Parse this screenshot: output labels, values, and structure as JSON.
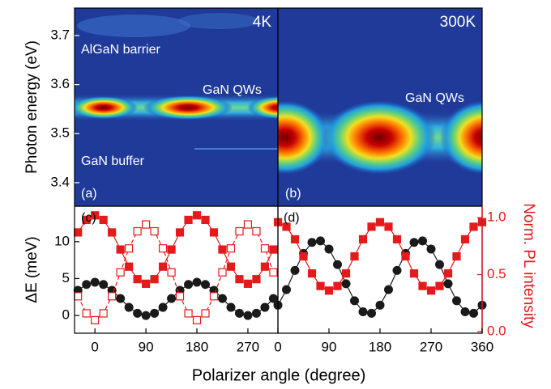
{
  "chart_data": [
    {
      "type": "heatmap",
      "label": "(a)",
      "ylabel": "Photon energy (eV)",
      "ylim": [
        3.352,
        3.756
      ],
      "yticks": [
        3.4,
        3.5,
        3.6,
        3.7
      ],
      "annotations": [
        "4K",
        "AlGaN barrier",
        "GaN QWs",
        "GaN buffer"
      ]
    },
    {
      "type": "heatmap",
      "label": "(b)",
      "ylim": [
        3.352,
        3.756
      ],
      "annotations": [
        "300K",
        "GaN QWs"
      ]
    },
    {
      "type": "scatter-line",
      "label": "(c)",
      "ylabel": "ΔE (meV)",
      "xlabel": "Polarizer angle (degree)",
      "xlim": [
        -36,
        323
      ],
      "xticks": [
        0,
        90,
        180,
        270
      ],
      "ylim": [
        -2.4,
        14.8
      ],
      "yticks": [
        0,
        5,
        10
      ],
      "y2lim": [
        -0.014,
        1.1
      ],
      "x": [
        -30,
        -15,
        0,
        15,
        30,
        45,
        60,
        75,
        90,
        105,
        120,
        135,
        150,
        165,
        180,
        195,
        210,
        225,
        240,
        255,
        270,
        285,
        300,
        315
      ],
      "series": [
        {
          "color": "#1a1a1a",
          "marker": "circle",
          "linestyle": "solid",
          "values": [
            3.4,
            4.2,
            4.5,
            4.2,
            3.4,
            2.3,
            1.1,
            0.3,
            0,
            0.3,
            1.1,
            2.3,
            3.4,
            4.2,
            4.5,
            4.2,
            3.4,
            2.3,
            1.1,
            0.3,
            0,
            0.3,
            1.1,
            2.3
          ]
        },
        {
          "color": "#e41a1c",
          "marker": "square",
          "linestyle": "solid",
          "axis": "y2",
          "values": [
            0.87,
            0.98,
            1.02,
            0.98,
            0.87,
            0.72,
            0.57,
            0.46,
            0.42,
            0.46,
            0.57,
            0.72,
            0.87,
            0.98,
            1.02,
            0.98,
            0.87,
            0.72,
            0.57,
            0.46,
            0.42,
            0.46,
            0.57,
            0.72
          ]
        },
        {
          "color": "#e41a1c",
          "marker": "open-square",
          "linestyle": "dashed",
          "axis": "y2",
          "values": [
            0.31,
            0.16,
            0.1,
            0.16,
            0.31,
            0.52,
            0.73,
            0.88,
            0.94,
            0.88,
            0.73,
            0.52,
            0.31,
            0.16,
            0.1,
            0.16,
            0.31,
            0.52,
            0.73,
            0.88,
            0.94,
            0.88,
            0.73,
            0.52
          ]
        }
      ]
    },
    {
      "type": "scatter-line",
      "label": "(d)",
      "y2label": "Norm. PL intensity",
      "xlim": [
        0,
        360
      ],
      "xticks": [
        0,
        90,
        180,
        270,
        360
      ],
      "ylim": [
        -2.4,
        14.8
      ],
      "y2lim": [
        -0.014,
        1.1
      ],
      "y2ticks": [
        {
          "value": 0,
          "label": "0.0"
        },
        {
          "value": 0.5,
          "label": "0.5"
        },
        {
          "value": 1,
          "label": "1.0"
        }
      ],
      "x": [
        0,
        15,
        30,
        45,
        60,
        75,
        90,
        105,
        120,
        135,
        150,
        165,
        180,
        195,
        210,
        225,
        240,
        255,
        270,
        285,
        300,
        315,
        330,
        345,
        360
      ],
      "series": [
        {
          "color": "#1a1a1a",
          "marker": "circle",
          "linestyle": "solid",
          "values": [
            1.4,
            3.5,
            6.1,
            8.4,
            9.9,
            10.1,
            9.0,
            6.9,
            4.3,
            2.0,
            0.5,
            0.3,
            1.4,
            3.5,
            6.1,
            8.4,
            9.9,
            10.1,
            9.0,
            6.9,
            4.3,
            2.0,
            0.5,
            0.3,
            1.4
          ]
        },
        {
          "color": "#e41a1c",
          "marker": "square",
          "linestyle": "solid",
          "axis": "y2",
          "values": [
            0.96,
            0.92,
            0.81,
            0.66,
            0.51,
            0.4,
            0.36,
            0.4,
            0.51,
            0.66,
            0.81,
            0.92,
            0.96,
            0.92,
            0.81,
            0.66,
            0.51,
            0.4,
            0.36,
            0.4,
            0.51,
            0.66,
            0.81,
            0.92,
            0.96
          ]
        }
      ]
    }
  ]
}
